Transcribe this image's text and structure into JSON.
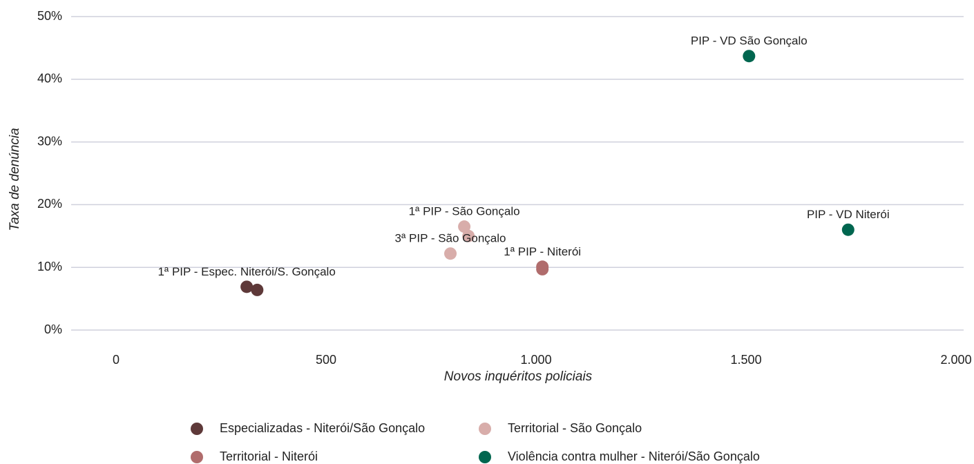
{
  "chart_data": {
    "type": "scatter",
    "x_label": "Novos inquéritos policiais",
    "y_label": "Taxa de denúncia",
    "xlim": [
      -107,
      2018
    ],
    "ylim": [
      0,
      50
    ],
    "xticks": [
      0,
      500,
      {
        "value": 1000,
        "label": "1.000"
      },
      {
        "value": 1500,
        "label": "1.500"
      },
      {
        "value": 2000,
        "label": "2.000"
      }
    ],
    "yticks": [
      {
        "value": 0,
        "label": "0%"
      },
      {
        "value": 10,
        "label": "10%"
      },
      {
        "value": 20,
        "label": "20%"
      },
      {
        "value": 30,
        "label": "30%"
      },
      {
        "value": 40,
        "label": "40%"
      },
      {
        "value": 50,
        "label": "50%"
      }
    ],
    "grid": true,
    "legend": "bottom",
    "series": [
      {
        "name": "Especializadas - Niterói/São Gonçalo",
        "color": "#5e3939",
        "x": [
          311,
          336
        ],
        "values": [
          6.9,
          6.4
        ],
        "labels": [
          "1ª PIP - Espec. Niterói/S. Gonçalo",
          null
        ]
      },
      {
        "name": "Territorial - São Gonçalo",
        "color": "#d8adaa",
        "x": [
          796,
          829,
          839
        ],
        "values": [
          12.2,
          16.5,
          15.0
        ],
        "labels": [
          "3ª PIP - São Gonçalo",
          "1ª PIP - São Gonçalo",
          null
        ]
      },
      {
        "name": "Territorial - Niterói",
        "color": "#b06c6c",
        "x": [
          1015,
          1015
        ],
        "values": [
          10.1,
          9.7
        ],
        "labels": [
          "1ª PIP - Niterói",
          null
        ]
      },
      {
        "name": "Violência contra mulher - Niterói/São Gonçalo",
        "color": "#00664f",
        "x": [
          1507,
          1743
        ],
        "values": [
          43.7,
          16.0
        ],
        "labels": [
          "PIP - VD São Gonçalo",
          "PIP - VD Niterói"
        ]
      }
    ]
  }
}
